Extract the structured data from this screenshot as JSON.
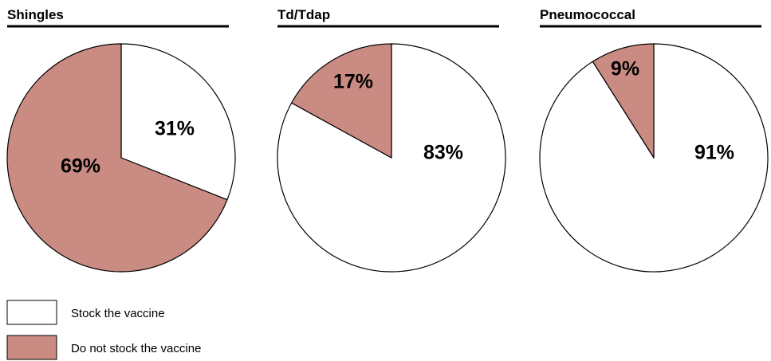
{
  "chart_data": [
    {
      "type": "pie",
      "title": "Shingles",
      "categories": [
        "Stock the vaccine",
        "Do not stock the vaccine"
      ],
      "values": [
        31,
        69
      ],
      "labels": [
        "31%",
        "69%"
      ]
    },
    {
      "type": "pie",
      "title": "Td/Tdap",
      "categories": [
        "Stock the vaccine",
        "Do not stock the vaccine"
      ],
      "values": [
        83,
        17
      ],
      "labels": [
        "83%",
        "17%"
      ]
    },
    {
      "type": "pie",
      "title": "Pneumococcal",
      "categories": [
        "Stock the vaccine",
        "Do not stock the vaccine"
      ],
      "values": [
        91,
        9
      ],
      "labels": [
        "91%",
        "9%"
      ]
    }
  ],
  "legend": {
    "placement": "bottom-left",
    "items": [
      {
        "label": "Stock the vaccine",
        "color": "#ffffff"
      },
      {
        "label": "Do not stock the vaccine",
        "color": "#c98b82"
      }
    ]
  },
  "colors": {
    "stock": "#ffffff",
    "no_stock": "#c98b82",
    "stroke": "#000000"
  }
}
